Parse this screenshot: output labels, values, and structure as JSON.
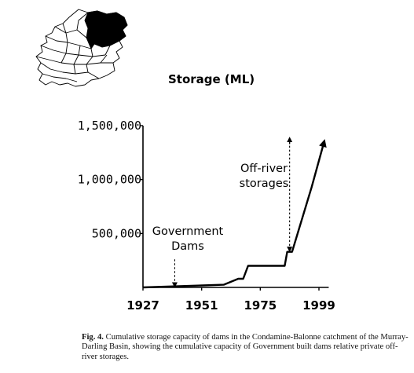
{
  "figure": {
    "caption_label": "Fig. 4.",
    "caption_text": "Cumulative storage capacity of dams in the Condamine-Balonne catchment of the Murray-Darling Basin, showing the cumulative capacity of Government built dams relative private off-river storages."
  },
  "map_inset": {
    "icon": "murray-darling-basin-map-icon",
    "highlight_color": "#000000"
  },
  "chart_data": {
    "type": "line",
    "title": "",
    "xlabel": "",
    "ylabel": "Storage (ML)",
    "xlim": [
      1927,
      2003
    ],
    "ylim": [
      0,
      1500000
    ],
    "xticks": [
      1927,
      1951,
      1975,
      1999
    ],
    "xtick_labels": [
      "1927",
      "1951",
      "1975",
      "1999"
    ],
    "yticks": [
      500000,
      1000000,
      1500000
    ],
    "ytick_labels": [
      "500,000",
      "1,000,000",
      "1,500,000"
    ],
    "grid": false,
    "series": [
      {
        "x": [
          1927,
          1960,
          1966,
          1968,
          1970,
          1972,
          1985,
          1986,
          1988,
          1996,
          2001
        ],
        "y": [
          0,
          25000,
          80000,
          80000,
          200000,
          200000,
          200000,
          330000,
          330000,
          930000,
          1340000
        ],
        "color": "#000000"
      }
    ],
    "annotations": [
      {
        "id": "government-dams",
        "text_lines": [
          "Government",
          "Dams"
        ],
        "x": 1940,
        "arrow_from_y": 260000,
        "arrow_to_y": 0
      },
      {
        "id": "off-river-storages",
        "text_lines": [
          "Off-river",
          "storages"
        ],
        "x": 1987,
        "arrow_from_y": 1350000,
        "arrow_to_y": 330000
      }
    ]
  }
}
